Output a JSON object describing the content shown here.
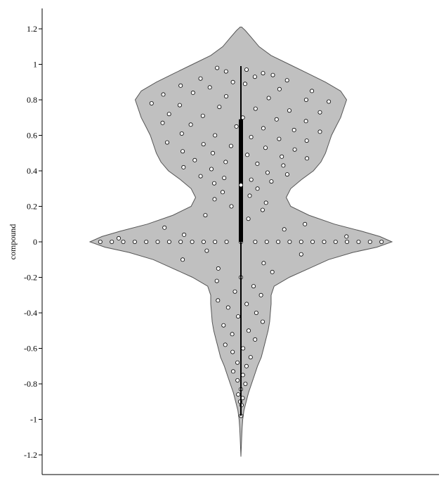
{
  "chart_data": {
    "type": "violin",
    "title": "",
    "xlabel": "",
    "ylabel": "compound",
    "ylim": [
      -1.28,
      1.3
    ],
    "yticks": [
      1.2,
      1,
      0.8,
      0.6,
      0.4,
      0.2,
      0,
      -0.2,
      -0.4,
      -0.6,
      -0.8,
      -1,
      -1.2
    ],
    "ytick_labels": [
      "1.2",
      "1",
      "0.8",
      "0.6",
      "0.4",
      "0.2",
      "0",
      "-0.2",
      "-0.4",
      "-0.6",
      "-0.8",
      "-1",
      "-1.2"
    ],
    "grid": false,
    "colors": {
      "violin_fill": "#c0c0c0",
      "violin_edge": "#555555",
      "point_fill": "#ffffff",
      "point_edge": "#000000",
      "whisker": "#000000"
    },
    "density_profile": [
      {
        "y": 1.21,
        "w": 0.005
      },
      {
        "y": 1.19,
        "w": 0.03
      },
      {
        "y": 1.15,
        "w": 0.07
      },
      {
        "y": 1.1,
        "w": 0.12
      },
      {
        "y": 1.05,
        "w": 0.2
      },
      {
        "y": 1.0,
        "w": 0.32
      },
      {
        "y": 0.95,
        "w": 0.44
      },
      {
        "y": 0.9,
        "w": 0.56
      },
      {
        "y": 0.85,
        "w": 0.66
      },
      {
        "y": 0.8,
        "w": 0.7
      },
      {
        "y": 0.75,
        "w": 0.68
      },
      {
        "y": 0.7,
        "w": 0.66
      },
      {
        "y": 0.65,
        "w": 0.63
      },
      {
        "y": 0.6,
        "w": 0.6
      },
      {
        "y": 0.55,
        "w": 0.58
      },
      {
        "y": 0.5,
        "w": 0.56
      },
      {
        "y": 0.45,
        "w": 0.53
      },
      {
        "y": 0.4,
        "w": 0.48
      },
      {
        "y": 0.35,
        "w": 0.4
      },
      {
        "y": 0.3,
        "w": 0.33
      },
      {
        "y": 0.25,
        "w": 0.3
      },
      {
        "y": 0.2,
        "w": 0.33
      },
      {
        "y": 0.15,
        "w": 0.45
      },
      {
        "y": 0.1,
        "w": 0.62
      },
      {
        "y": 0.06,
        "w": 0.8
      },
      {
        "y": 0.03,
        "w": 0.92
      },
      {
        "y": 0.0,
        "w": 1.0
      },
      {
        "y": -0.03,
        "w": 0.9
      },
      {
        "y": -0.06,
        "w": 0.74
      },
      {
        "y": -0.1,
        "w": 0.58
      },
      {
        "y": -0.15,
        "w": 0.45
      },
      {
        "y": -0.2,
        "w": 0.32
      },
      {
        "y": -0.25,
        "w": 0.22
      },
      {
        "y": -0.3,
        "w": 0.2
      },
      {
        "y": -0.35,
        "w": 0.2
      },
      {
        "y": -0.4,
        "w": 0.195
      },
      {
        "y": -0.45,
        "w": 0.19
      },
      {
        "y": -0.5,
        "w": 0.18
      },
      {
        "y": -0.55,
        "w": 0.165
      },
      {
        "y": -0.6,
        "w": 0.15
      },
      {
        "y": -0.65,
        "w": 0.135
      },
      {
        "y": -0.7,
        "w": 0.11
      },
      {
        "y": -0.75,
        "w": 0.09
      },
      {
        "y": -0.8,
        "w": 0.07
      },
      {
        "y": -0.85,
        "w": 0.05
      },
      {
        "y": -0.9,
        "w": 0.035
      },
      {
        "y": -0.95,
        "w": 0.02
      },
      {
        "y": -1.0,
        "w": 0.012
      },
      {
        "y": -1.05,
        "w": 0.008
      },
      {
        "y": -1.1,
        "w": 0.005
      },
      {
        "y": -1.15,
        "w": 0.003
      },
      {
        "y": -1.21,
        "w": 0.0
      }
    ],
    "whisker": [
      -0.98,
      0.99
    ],
    "box": [
      0.0,
      0.69
    ],
    "median": 0.32,
    "points": [
      {
        "y": 0.98,
        "j": -0.45
      },
      {
        "y": 0.96,
        "j": -0.25
      },
      {
        "y": 0.97,
        "j": 0.1
      },
      {
        "y": 0.95,
        "j": 0.35
      },
      {
        "y": 0.94,
        "j": 0.48
      },
      {
        "y": 0.92,
        "j": -0.55
      },
      {
        "y": 0.9,
        "j": -0.1
      },
      {
        "y": 0.93,
        "j": 0.2
      },
      {
        "y": 0.91,
        "j": 0.6
      },
      {
        "y": 0.88,
        "j": -0.7
      },
      {
        "y": 0.87,
        "j": -0.35
      },
      {
        "y": 0.89,
        "j": 0.05
      },
      {
        "y": 0.86,
        "j": 0.42
      },
      {
        "y": 0.85,
        "j": 0.75
      },
      {
        "y": 0.83,
        "j": -0.8
      },
      {
        "y": 0.84,
        "j": -0.5
      },
      {
        "y": 0.82,
        "j": -0.15
      },
      {
        "y": 0.81,
        "j": 0.28
      },
      {
        "y": 0.8,
        "j": 0.65
      },
      {
        "y": 0.79,
        "j": 0.88
      },
      {
        "y": 0.78,
        "j": -0.9
      },
      {
        "y": 0.77,
        "j": -0.62
      },
      {
        "y": 0.76,
        "j": -0.22
      },
      {
        "y": 0.75,
        "j": 0.15
      },
      {
        "y": 0.74,
        "j": 0.5
      },
      {
        "y": 0.73,
        "j": 0.82
      },
      {
        "y": 0.72,
        "j": -0.75
      },
      {
        "y": 0.71,
        "j": -0.4
      },
      {
        "y": 0.7,
        "j": 0.02
      },
      {
        "y": 0.69,
        "j": 0.38
      },
      {
        "y": 0.68,
        "j": 0.7
      },
      {
        "y": 0.67,
        "j": -0.85
      },
      {
        "y": 0.66,
        "j": -0.55
      },
      {
        "y": 0.65,
        "j": -0.05
      },
      {
        "y": 0.64,
        "j": 0.25
      },
      {
        "y": 0.63,
        "j": 0.6
      },
      {
        "y": 0.62,
        "j": 0.9
      },
      {
        "y": 0.61,
        "j": -0.68
      },
      {
        "y": 0.6,
        "j": -0.3
      },
      {
        "y": 0.59,
        "j": 0.12
      },
      {
        "y": 0.58,
        "j": 0.45
      },
      {
        "y": 0.57,
        "j": 0.78
      },
      {
        "y": 0.56,
        "j": -0.88
      },
      {
        "y": 0.55,
        "j": -0.45
      },
      {
        "y": 0.54,
        "j": -0.12
      },
      {
        "y": 0.53,
        "j": 0.3
      },
      {
        "y": 0.52,
        "j": 0.66
      },
      {
        "y": 0.51,
        "j": -0.72
      },
      {
        "y": 0.5,
        "j": -0.35
      },
      {
        "y": 0.49,
        "j": 0.08
      },
      {
        "y": 0.48,
        "j": 0.52
      },
      {
        "y": 0.47,
        "j": 0.85
      },
      {
        "y": 0.46,
        "j": -0.6
      },
      {
        "y": 0.45,
        "j": -0.2
      },
      {
        "y": 0.44,
        "j": 0.22
      },
      {
        "y": 0.43,
        "j": 0.58
      },
      {
        "y": 0.42,
        "j": -0.8
      },
      {
        "y": 0.41,
        "j": -0.42
      },
      {
        "y": 0.4,
        "j": 0.0
      },
      {
        "y": 0.39,
        "j": 0.4
      },
      {
        "y": 0.38,
        "j": 0.72
      },
      {
        "y": 0.37,
        "j": -0.65
      },
      {
        "y": 0.36,
        "j": -0.28
      },
      {
        "y": 0.35,
        "j": 0.18
      },
      {
        "y": 0.34,
        "j": 0.55
      },
      {
        "y": 0.33,
        "j": -0.5
      },
      {
        "y": 0.32,
        "j": 0.0
      },
      {
        "y": 0.3,
        "j": 0.35
      },
      {
        "y": 0.28,
        "j": -0.4
      },
      {
        "y": 0.26,
        "j": 0.2
      },
      {
        "y": 0.24,
        "j": -0.6
      },
      {
        "y": 0.22,
        "j": 0.55
      },
      {
        "y": 0.2,
        "j": -0.2
      },
      {
        "y": 0.18,
        "j": 0.4
      },
      {
        "y": 0.15,
        "j": -0.55
      },
      {
        "y": 0.13,
        "j": 0.1
      },
      {
        "y": 0.1,
        "j": 0.0
      },
      {
        "y": 0.1,
        "j": 0.72
      },
      {
        "y": 0.08,
        "j": -0.75
      },
      {
        "y": 0.07,
        "j": 0.4
      },
      {
        "y": 0.04,
        "j": -0.45
      },
      {
        "y": 0.03,
        "j": 0.8
      },
      {
        "y": 0.02,
        "j": -0.9
      },
      {
        "y": 0.0,
        "j": -0.98
      },
      {
        "y": 0.0,
        "j": -0.9
      },
      {
        "y": 0.0,
        "j": -0.82
      },
      {
        "y": 0.0,
        "j": -0.74
      },
      {
        "y": 0.0,
        "j": -0.66
      },
      {
        "y": 0.0,
        "j": -0.58
      },
      {
        "y": 0.0,
        "j": -0.5
      },
      {
        "y": 0.0,
        "j": -0.42
      },
      {
        "y": 0.0,
        "j": -0.34
      },
      {
        "y": 0.0,
        "j": -0.26
      },
      {
        "y": 0.0,
        "j": -0.18
      },
      {
        "y": 0.0,
        "j": -0.1
      },
      {
        "y": 0.0,
        "j": 0.0
      },
      {
        "y": 0.0,
        "j": 0.1
      },
      {
        "y": 0.0,
        "j": 0.18
      },
      {
        "y": 0.0,
        "j": 0.26
      },
      {
        "y": 0.0,
        "j": 0.34
      },
      {
        "y": 0.0,
        "j": 0.42
      },
      {
        "y": 0.0,
        "j": 0.5
      },
      {
        "y": 0.0,
        "j": 0.58
      },
      {
        "y": 0.0,
        "j": 0.66
      },
      {
        "y": 0.0,
        "j": 0.74
      },
      {
        "y": 0.0,
        "j": 0.82
      },
      {
        "y": 0.0,
        "j": 0.9
      },
      {
        "y": 0.0,
        "j": 0.98
      },
      {
        "y": -0.05,
        "j": -0.3
      },
      {
        "y": -0.07,
        "j": 0.6
      },
      {
        "y": -0.1,
        "j": -0.7
      },
      {
        "y": -0.12,
        "j": 0.3
      },
      {
        "y": -0.15,
        "j": -0.35
      },
      {
        "y": -0.17,
        "j": 0.55
      },
      {
        "y": -0.2,
        "j": 0.0
      },
      {
        "y": -0.22,
        "j": -0.6
      },
      {
        "y": -0.25,
        "j": 0.4
      },
      {
        "y": -0.28,
        "j": -0.2
      },
      {
        "y": -0.3,
        "j": 0.7
      },
      {
        "y": -0.33,
        "j": -0.8
      },
      {
        "y": -0.35,
        "j": 0.2
      },
      {
        "y": -0.37,
        "j": -0.45
      },
      {
        "y": -0.4,
        "j": 0.55
      },
      {
        "y": -0.42,
        "j": -0.1
      },
      {
        "y": -0.45,
        "j": 0.8
      },
      {
        "y": -0.47,
        "j": -0.65
      },
      {
        "y": -0.5,
        "j": 0.3
      },
      {
        "y": -0.52,
        "j": -0.35
      },
      {
        "y": -0.55,
        "j": 0.6
      },
      {
        "y": -0.58,
        "j": -0.7
      },
      {
        "y": -0.6,
        "j": 0.1
      },
      {
        "y": -0.62,
        "j": -0.4
      },
      {
        "y": -0.65,
        "j": 0.5
      },
      {
        "y": -0.68,
        "j": -0.2
      },
      {
        "y": -0.7,
        "j": 0.35
      },
      {
        "y": -0.73,
        "j": -0.55
      },
      {
        "y": -0.75,
        "j": 0.15
      },
      {
        "y": -0.78,
        "j": -0.3
      },
      {
        "y": -0.8,
        "j": 0.45
      },
      {
        "y": -0.83,
        "j": 0.0
      },
      {
        "y": -0.86,
        "j": -0.4
      },
      {
        "y": -0.88,
        "j": 0.3
      },
      {
        "y": -0.9,
        "j": -0.15
      },
      {
        "y": -0.92,
        "j": 0.15
      },
      {
        "y": -0.98,
        "j": 0.05
      }
    ]
  }
}
